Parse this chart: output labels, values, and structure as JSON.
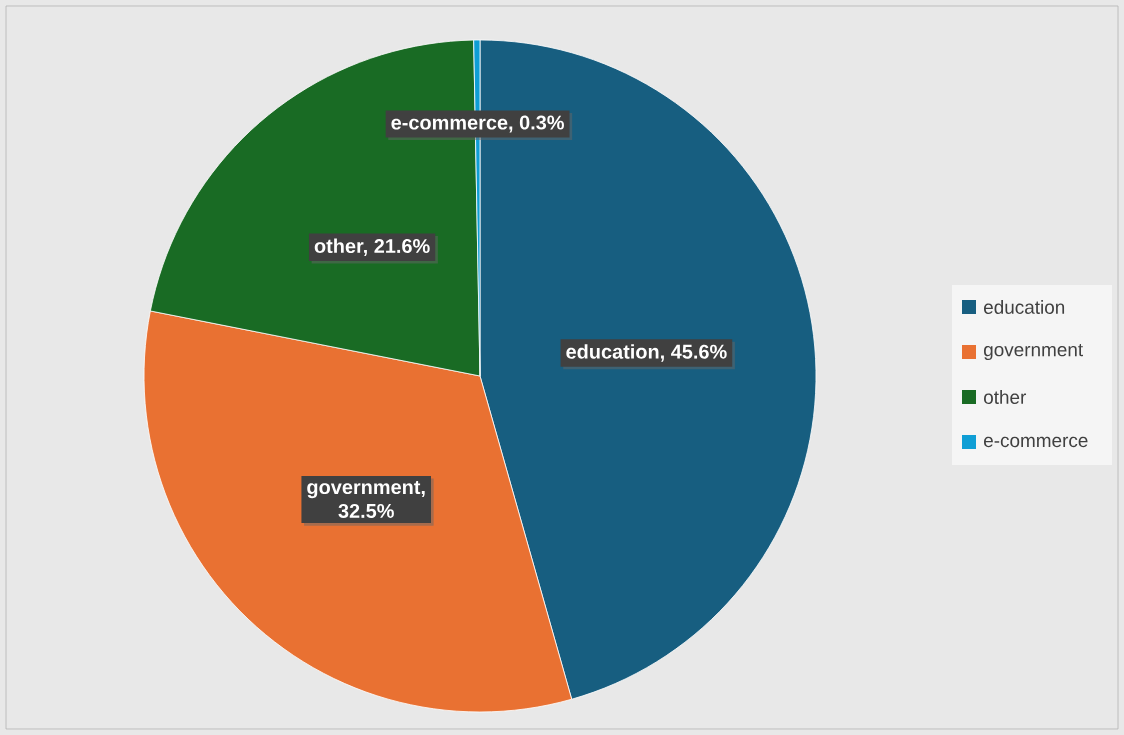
{
  "chart_data": {
    "type": "pie",
    "categories": [
      "education",
      "government",
      "other",
      "e-commerce"
    ],
    "values": [
      45.6,
      32.5,
      21.6,
      0.3
    ],
    "colors": [
      "#175e80",
      "#e97132",
      "#196b24",
      "#0f9ed5"
    ],
    "value_labels": [
      "education, 45.6%",
      "government, 32.5%",
      "other, 21.6%",
      "e-commerce, 0.3%"
    ],
    "legend": "right"
  }
}
